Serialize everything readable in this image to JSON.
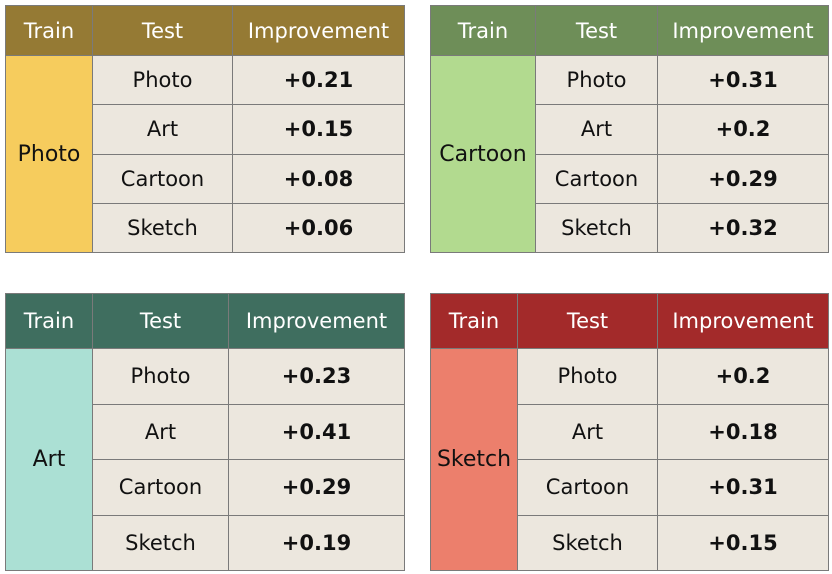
{
  "chart_data": [
    {
      "type": "table",
      "columns": [
        "Train",
        "Test",
        "Improvement"
      ],
      "train": "Photo",
      "colors": {
        "header": "#957a34",
        "train": "#f6cc5d"
      },
      "rows": [
        {
          "test": "Photo",
          "improvement": "+0.21"
        },
        {
          "test": "Art",
          "improvement": "+0.15"
        },
        {
          "test": "Cartoon",
          "improvement": "+0.08"
        },
        {
          "test": "Sketch",
          "improvement": "+0.06"
        }
      ]
    },
    {
      "type": "table",
      "columns": [
        "Train",
        "Test",
        "Improvement"
      ],
      "train": "Cartoon",
      "colors": {
        "header": "#6e8e58",
        "train": "#b2da8f"
      },
      "rows": [
        {
          "test": "Photo",
          "improvement": "+0.31"
        },
        {
          "test": "Art",
          "improvement": "+0.2"
        },
        {
          "test": "Cartoon",
          "improvement": "+0.29"
        },
        {
          "test": "Sketch",
          "improvement": "+0.32"
        }
      ]
    },
    {
      "type": "table",
      "columns": [
        "Train",
        "Test",
        "Improvement"
      ],
      "train": "Art",
      "colors": {
        "header": "#3f6e5f",
        "train": "#abe0d4"
      },
      "rows": [
        {
          "test": "Photo",
          "improvement": "+0.23"
        },
        {
          "test": "Art",
          "improvement": "+0.41"
        },
        {
          "test": "Cartoon",
          "improvement": "+0.29"
        },
        {
          "test": "Sketch",
          "improvement": "+0.19"
        }
      ]
    },
    {
      "type": "table",
      "columns": [
        "Train",
        "Test",
        "Improvement"
      ],
      "train": "Sketch",
      "colors": {
        "header": "#a32a2a",
        "train": "#ec7f6c"
      },
      "rows": [
        {
          "test": "Photo",
          "improvement": "+0.2"
        },
        {
          "test": "Art",
          "improvement": "+0.18"
        },
        {
          "test": "Cartoon",
          "improvement": "+0.31"
        },
        {
          "test": "Sketch",
          "improvement": "+0.15"
        }
      ]
    }
  ]
}
